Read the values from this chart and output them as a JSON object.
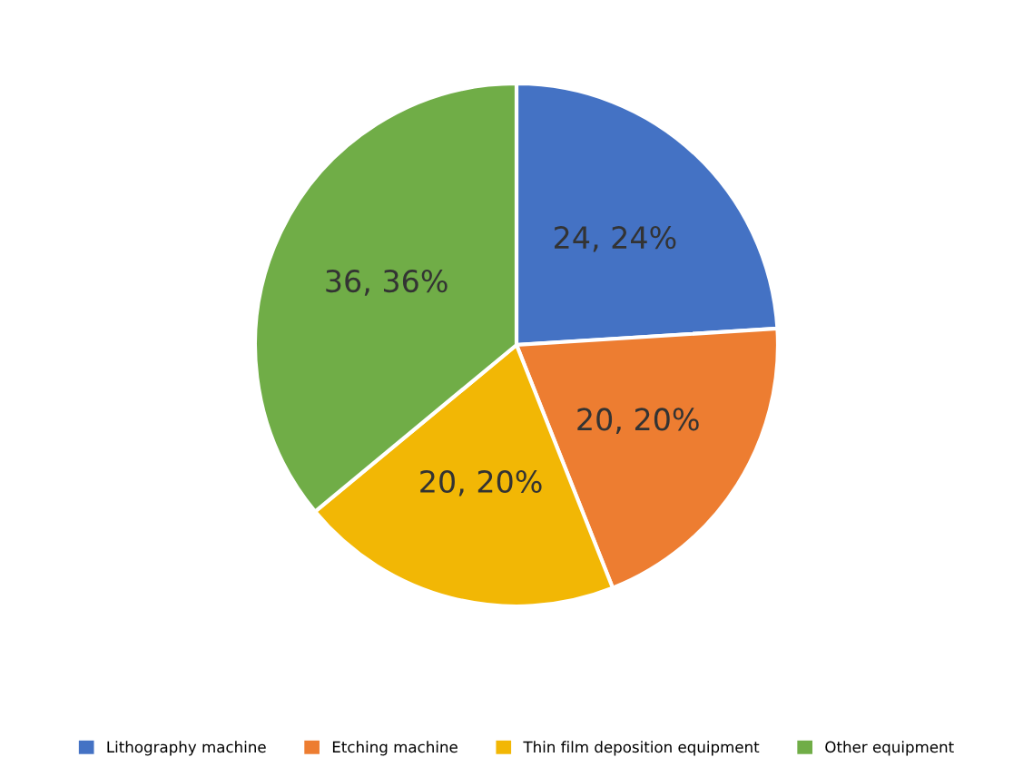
{
  "chart_data": {
    "type": "pie",
    "categories": [
      "Lithography machine",
      "Etching machine",
      "Thin film deposition equipment",
      "Other equipment"
    ],
    "values": [
      24,
      20,
      20,
      36
    ],
    "colors": [
      "#4472c4",
      "#ed7d31",
      "#f2b705",
      "#70ad47"
    ],
    "value_labels": [
      "24, 24%",
      "20, 20%",
      "20, 20%",
      "36, 36%"
    ],
    "legend": "bottom"
  }
}
